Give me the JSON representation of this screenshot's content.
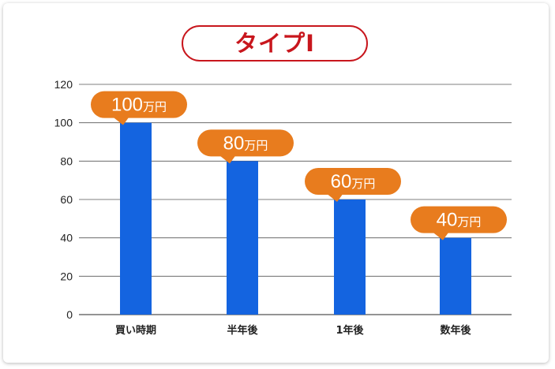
{
  "chart_data": {
    "type": "bar",
    "title": "タイプI",
    "categories": [
      "買い時期",
      "半年後",
      "1年後",
      "数年後"
    ],
    "values": [
      100,
      80,
      60,
      40
    ],
    "data_labels": [
      {
        "number": "100",
        "unit": "万円"
      },
      {
        "number": "80",
        "unit": "万円"
      },
      {
        "number": "60",
        "unit": "万円"
      },
      {
        "number": "40",
        "unit": "万円"
      }
    ],
    "ylim": [
      0,
      120
    ],
    "yticks": [
      "0",
      "20",
      "40",
      "60",
      "80",
      "100",
      "120"
    ],
    "xlabel": "",
    "ylabel": "",
    "grid": true,
    "legend": "none"
  },
  "colors": {
    "bar": "#1464e0",
    "callout": "#e87c1e",
    "callout_text": "#ffffff",
    "title": "#c8161d",
    "grid": "#555555",
    "axis_text": "#222222"
  }
}
